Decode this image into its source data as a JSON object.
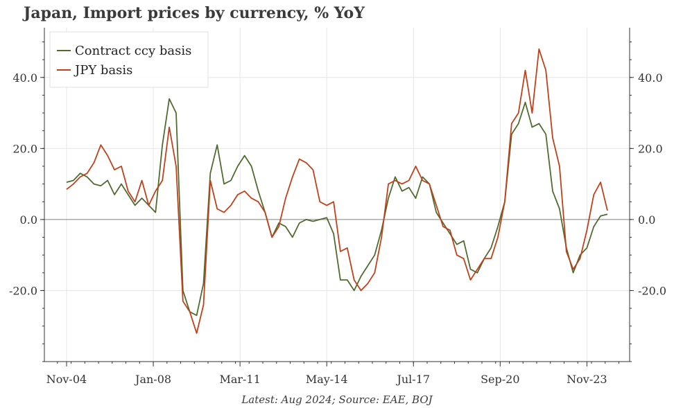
{
  "chart_data": {
    "type": "line",
    "title": "Japan, Import prices by currency, % YoY",
    "footnote": "Latest: Aug 2024; Source: EAE, BOJ",
    "xlabel": "",
    "ylabel": "",
    "x_start": "2004-11",
    "x_end": "2024-08",
    "x_ticks": [
      "Nov-04",
      "Jan-08",
      "Mar-11",
      "May-14",
      "Jul-17",
      "Sep-20",
      "Nov-23"
    ],
    "y_ticks": [
      "-20.0",
      "0.0",
      "20.0",
      "40.0"
    ],
    "ylim": [
      -40,
      54
    ],
    "grid": true,
    "legend_position": "top-left",
    "series": [
      {
        "name": "Contract ccy basis",
        "color": "#4f6b2e",
        "points": [
          [
            "2004-11",
            10.5
          ],
          [
            "2005-02",
            11
          ],
          [
            "2005-05",
            13
          ],
          [
            "2005-08",
            12
          ],
          [
            "2005-11",
            10
          ],
          [
            "2006-02",
            9.5
          ],
          [
            "2006-05",
            11
          ],
          [
            "2006-08",
            7
          ],
          [
            "2006-11",
            10
          ],
          [
            "2007-02",
            7
          ],
          [
            "2007-05",
            4
          ],
          [
            "2007-08",
            6
          ],
          [
            "2007-11",
            4
          ],
          [
            "2008-02",
            2
          ],
          [
            "2008-05",
            21
          ],
          [
            "2008-08",
            34
          ],
          [
            "2008-11",
            30
          ],
          [
            "2009-02",
            -20
          ],
          [
            "2009-05",
            -26
          ],
          [
            "2009-08",
            -27
          ],
          [
            "2009-11",
            -18
          ],
          [
            "2010-02",
            13
          ],
          [
            "2010-05",
            21
          ],
          [
            "2010-08",
            10
          ],
          [
            "2010-11",
            11
          ],
          [
            "2011-02",
            15
          ],
          [
            "2011-05",
            18
          ],
          [
            "2011-08",
            15
          ],
          [
            "2011-11",
            8
          ],
          [
            "2012-02",
            2
          ],
          [
            "2012-05",
            -5
          ],
          [
            "2012-08",
            -1
          ],
          [
            "2012-11",
            -2
          ],
          [
            "2013-02",
            -5
          ],
          [
            "2013-05",
            -1
          ],
          [
            "2013-08",
            0
          ],
          [
            "2013-11",
            -0.5
          ],
          [
            "2014-02",
            0
          ],
          [
            "2014-05",
            0.5
          ],
          [
            "2014-08",
            -4
          ],
          [
            "2014-11",
            -17
          ],
          [
            "2015-02",
            -17
          ],
          [
            "2015-05",
            -20
          ],
          [
            "2015-08",
            -16
          ],
          [
            "2015-11",
            -13
          ],
          [
            "2016-02",
            -10
          ],
          [
            "2016-05",
            -3
          ],
          [
            "2016-08",
            6
          ],
          [
            "2016-11",
            12
          ],
          [
            "2017-02",
            8
          ],
          [
            "2017-05",
            9
          ],
          [
            "2017-08",
            6
          ],
          [
            "2017-11",
            12
          ],
          [
            "2018-02",
            10
          ],
          [
            "2018-05",
            2
          ],
          [
            "2018-08",
            -1
          ],
          [
            "2018-11",
            -4
          ],
          [
            "2019-02",
            -7
          ],
          [
            "2019-05",
            -6
          ],
          [
            "2019-08",
            -14
          ],
          [
            "2019-11",
            -15
          ],
          [
            "2020-02",
            -11
          ],
          [
            "2020-05",
            -8
          ],
          [
            "2020-08",
            -2
          ],
          [
            "2020-11",
            5
          ],
          [
            "2021-02",
            24
          ],
          [
            "2021-05",
            27
          ],
          [
            "2021-08",
            33
          ],
          [
            "2021-11",
            26
          ],
          [
            "2022-02",
            27
          ],
          [
            "2022-05",
            24
          ],
          [
            "2022-08",
            8
          ],
          [
            "2022-11",
            3
          ],
          [
            "2023-02",
            -8
          ],
          [
            "2023-05",
            -15
          ],
          [
            "2023-08",
            -10
          ],
          [
            "2023-11",
            -8
          ],
          [
            "2024-02",
            -2
          ],
          [
            "2024-05",
            1
          ],
          [
            "2024-08",
            1.5
          ]
        ]
      },
      {
        "name": "JPY basis",
        "color": "#c0401a",
        "points": [
          [
            "2004-11",
            8.5
          ],
          [
            "2005-02",
            10
          ],
          [
            "2005-05",
            12
          ],
          [
            "2005-08",
            13
          ],
          [
            "2005-11",
            16
          ],
          [
            "2006-02",
            21
          ],
          [
            "2006-05",
            18
          ],
          [
            "2006-08",
            14
          ],
          [
            "2006-11",
            15
          ],
          [
            "2007-02",
            8
          ],
          [
            "2007-05",
            5
          ],
          [
            "2007-08",
            11
          ],
          [
            "2007-11",
            4
          ],
          [
            "2008-02",
            8
          ],
          [
            "2008-05",
            11
          ],
          [
            "2008-08",
            26
          ],
          [
            "2008-11",
            15
          ],
          [
            "2009-02",
            -23
          ],
          [
            "2009-05",
            -26
          ],
          [
            "2009-08",
            -32
          ],
          [
            "2009-11",
            -24
          ],
          [
            "2010-02",
            11
          ],
          [
            "2010-05",
            3
          ],
          [
            "2010-08",
            2
          ],
          [
            "2010-11",
            4
          ],
          [
            "2011-02",
            7
          ],
          [
            "2011-05",
            8
          ],
          [
            "2011-08",
            6
          ],
          [
            "2011-11",
            5
          ],
          [
            "2012-02",
            2
          ],
          [
            "2012-05",
            -5
          ],
          [
            "2012-08",
            -2
          ],
          [
            "2012-11",
            6
          ],
          [
            "2013-02",
            12
          ],
          [
            "2013-05",
            17
          ],
          [
            "2013-08",
            16
          ],
          [
            "2013-11",
            14
          ],
          [
            "2014-02",
            5
          ],
          [
            "2014-05",
            4
          ],
          [
            "2014-08",
            5
          ],
          [
            "2014-11",
            -9
          ],
          [
            "2015-02",
            -8
          ],
          [
            "2015-05",
            -17
          ],
          [
            "2015-08",
            -20
          ],
          [
            "2015-11",
            -18
          ],
          [
            "2016-02",
            -15
          ],
          [
            "2016-05",
            -5
          ],
          [
            "2016-08",
            10
          ],
          [
            "2016-11",
            11
          ],
          [
            "2017-02",
            10
          ],
          [
            "2017-05",
            11
          ],
          [
            "2017-08",
            15
          ],
          [
            "2017-11",
            11
          ],
          [
            "2018-02",
            10
          ],
          [
            "2018-05",
            4
          ],
          [
            "2018-08",
            -2
          ],
          [
            "2018-11",
            -3
          ],
          [
            "2019-02",
            -10
          ],
          [
            "2019-05",
            -11
          ],
          [
            "2019-08",
            -17
          ],
          [
            "2019-11",
            -14
          ],
          [
            "2020-02",
            -11
          ],
          [
            "2020-05",
            -11
          ],
          [
            "2020-08",
            -5
          ],
          [
            "2020-11",
            5
          ],
          [
            "2021-02",
            27
          ],
          [
            "2021-05",
            30
          ],
          [
            "2021-08",
            42
          ],
          [
            "2021-11",
            30
          ],
          [
            "2022-02",
            48
          ],
          [
            "2022-05",
            42
          ],
          [
            "2022-08",
            23
          ],
          [
            "2022-11",
            15
          ],
          [
            "2023-02",
            -9
          ],
          [
            "2023-05",
            -14
          ],
          [
            "2023-08",
            -11
          ],
          [
            "2023-11",
            -3
          ],
          [
            "2024-02",
            7
          ],
          [
            "2024-05",
            10.5
          ],
          [
            "2024-08",
            2.5
          ]
        ]
      }
    ]
  }
}
